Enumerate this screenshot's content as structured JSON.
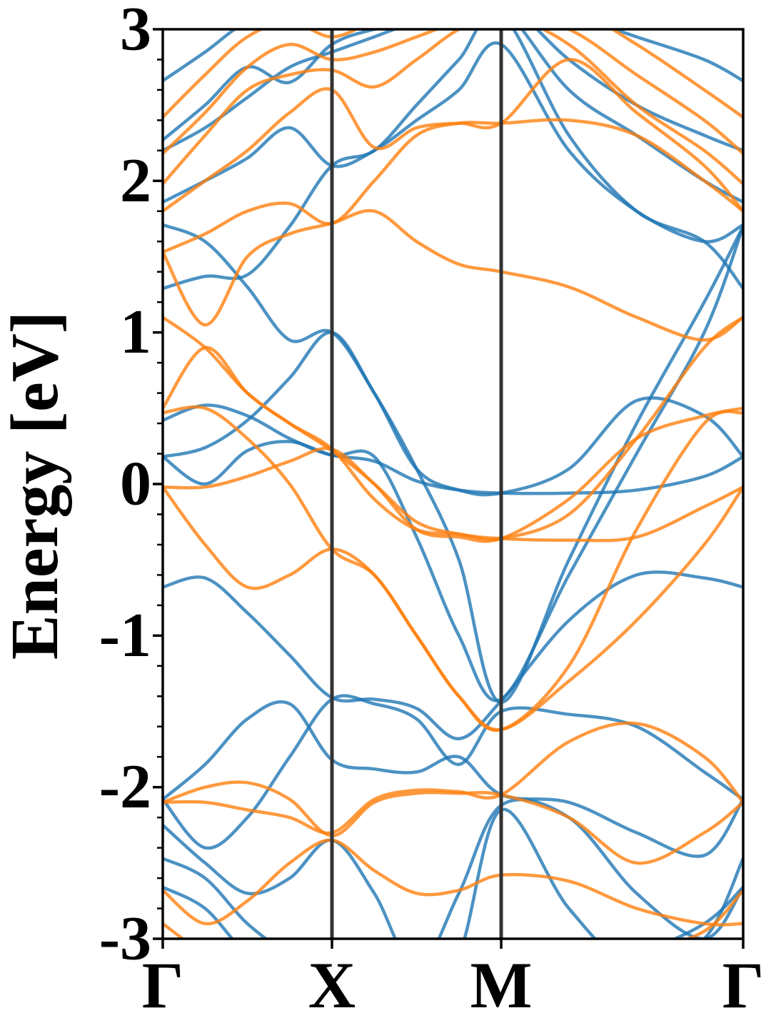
{
  "chart_data": {
    "type": "line",
    "title": "",
    "xlabel": "",
    "ylabel": "Energy [eV]",
    "ylim": [
      -3,
      3
    ],
    "yticks": [
      -3,
      -2,
      -1,
      0,
      1,
      2,
      3
    ],
    "y_minor_step": 0.2,
    "xlim": [
      0,
      3.43
    ],
    "k_points": [
      {
        "label": "Γ",
        "x": 0
      },
      {
        "label": "X",
        "x": 1.0
      },
      {
        "label": "M",
        "x": 2.0
      },
      {
        "label": "Γ",
        "x": 3.43
      }
    ],
    "grid": false,
    "legend": "none",
    "colors": {
      "spin_up": "#1f77b4",
      "spin_down": "#ff7f0e",
      "kpath_line": "#333333",
      "axes": "#000000"
    },
    "series": [
      {
        "color": "#1f77b4",
        "x": [
          0,
          0.25,
          0.5,
          0.75,
          1.0,
          1.25,
          1.5,
          1.75,
          2.0,
          2.4,
          2.8,
          3.2,
          3.43
        ],
        "y": [
          -0.68,
          -0.62,
          -0.85,
          -1.13,
          -1.41,
          -1.42,
          -1.48,
          -1.68,
          -1.43,
          -0.9,
          -0.6,
          -0.62,
          -0.68
        ]
      },
      {
        "color": "#1f77b4",
        "x": [
          0,
          0.25,
          0.5,
          0.75,
          1.0,
          1.25,
          1.5,
          1.75,
          2.0,
          2.4,
          2.8,
          3.2,
          3.43
        ],
        "y": [
          0.18,
          0.0,
          0.22,
          0.28,
          0.19,
          0.15,
          0.02,
          -0.04,
          -0.06,
          -0.06,
          -0.04,
          0.05,
          0.18
        ]
      },
      {
        "color": "#1f77b4",
        "x": [
          0,
          0.25,
          0.5,
          0.75,
          1.0,
          1.25,
          1.5,
          1.75,
          2.0,
          2.4,
          2.8,
          3.2,
          3.43
        ],
        "y": [
          0.18,
          0.24,
          0.42,
          0.7,
          1.0,
          0.6,
          0.1,
          -0.04,
          -0.06,
          0.1,
          0.55,
          0.45,
          0.18
        ]
      },
      {
        "color": "#1f77b4",
        "x": [
          0,
          0.25,
          0.5,
          0.75,
          1.0,
          1.25,
          1.5,
          1.75,
          2.0,
          2.4,
          2.8,
          3.2,
          3.43
        ],
        "y": [
          0.42,
          0.52,
          0.45,
          0.3,
          0.19,
          0.18,
          -0.35,
          -1.0,
          -1.42,
          -0.6,
          0.2,
          1.0,
          1.7
        ]
      },
      {
        "color": "#1f77b4",
        "x": [
          0,
          0.25,
          0.5,
          0.75,
          1.0,
          1.25,
          1.5,
          1.75,
          2.0,
          2.4,
          2.8,
          3.2,
          3.43
        ],
        "y": [
          1.71,
          1.6,
          1.3,
          0.95,
          1.0,
          0.6,
          0.1,
          -0.5,
          -1.44,
          -0.5,
          0.4,
          1.2,
          1.7
        ]
      },
      {
        "color": "#1f77b4",
        "x": [
          0,
          0.25,
          0.5,
          0.75,
          1.0,
          1.25,
          1.5,
          1.75,
          2.0,
          2.4,
          2.8,
          3.2,
          3.43
        ],
        "y": [
          1.29,
          1.37,
          1.38,
          1.7,
          2.1,
          2.2,
          2.5,
          2.8,
          3.1,
          2.3,
          1.8,
          1.6,
          1.29
        ]
      },
      {
        "color": "#1f77b4",
        "x": [
          0,
          0.25,
          0.5,
          0.75,
          1.0,
          1.25,
          1.5,
          1.75,
          2.0,
          2.4,
          2.8,
          3.2,
          3.43
        ],
        "y": [
          1.86,
          2.0,
          2.15,
          2.35,
          2.1,
          2.2,
          2.4,
          2.6,
          2.9,
          2.2,
          1.8,
          1.6,
          1.71
        ]
      },
      {
        "color": "#1f77b4",
        "x": [
          0,
          0.25,
          0.5,
          0.75,
          1.0,
          1.25,
          1.5,
          1.75,
          2.0,
          2.4,
          2.8,
          3.2,
          3.43
        ],
        "y": [
          2.2,
          2.35,
          2.55,
          2.75,
          2.85,
          2.95,
          3.05,
          3.1,
          3.15,
          2.6,
          2.3,
          2.0,
          1.86
        ]
      },
      {
        "color": "#1f77b4",
        "x": [
          0,
          0.25,
          0.5,
          0.75,
          1.0,
          1.25,
          1.5,
          1.75,
          2.0,
          2.4,
          2.8,
          3.2,
          3.43
        ],
        "y": [
          2.27,
          2.5,
          2.75,
          2.65,
          2.9,
          3.0,
          3.05,
          3.1,
          3.2,
          2.8,
          2.5,
          2.3,
          2.2
        ]
      },
      {
        "color": "#1f77b4",
        "x": [
          0,
          0.25,
          0.5,
          0.75,
          1.0,
          1.25,
          1.5,
          1.75,
          2.0,
          2.4,
          2.8,
          3.2,
          3.43
        ],
        "y": [
          2.66,
          2.85,
          3.05,
          3.1,
          3.1,
          3.15,
          3.2,
          3.2,
          3.2,
          3.1,
          2.95,
          2.8,
          2.66
        ]
      },
      {
        "color": "#1f77b4",
        "x": [
          0,
          0.25,
          0.5,
          0.75,
          1.0,
          1.25,
          1.5,
          1.75,
          2.0,
          2.4,
          2.8,
          3.2,
          3.43
        ],
        "y": [
          -2.08,
          -1.85,
          -1.55,
          -1.45,
          -1.82,
          -1.88,
          -1.9,
          -1.8,
          -2.05,
          -2.1,
          -2.3,
          -2.45,
          -2.08
        ]
      },
      {
        "color": "#1f77b4",
        "x": [
          0,
          0.25,
          0.5,
          0.75,
          1.0,
          1.25,
          1.5,
          1.75,
          2.0,
          2.4,
          2.8,
          3.2,
          3.43
        ],
        "y": [
          -2.08,
          -2.4,
          -2.2,
          -1.8,
          -1.42,
          -1.45,
          -1.55,
          -1.85,
          -1.5,
          -1.52,
          -1.6,
          -1.9,
          -2.08
        ]
      },
      {
        "color": "#1f77b4",
        "x": [
          0,
          0.25,
          0.5,
          0.75,
          1.0,
          1.25,
          1.5,
          1.75,
          2.0,
          2.4,
          2.8,
          3.2,
          3.43
        ],
        "y": [
          -2.25,
          -2.5,
          -2.7,
          -2.6,
          -2.35,
          -2.7,
          -3.2,
          -2.7,
          -2.12,
          -2.2,
          -2.7,
          -3.0,
          -2.66
        ]
      },
      {
        "color": "#1f77b4",
        "x": [
          0,
          0.25,
          0.5,
          0.75,
          1.0,
          1.25,
          1.5,
          1.75,
          2.0,
          2.4,
          2.8,
          3.2,
          3.43
        ],
        "y": [
          -2.47,
          -2.6,
          -2.9,
          -3.1,
          -3.2,
          -3.2,
          -3.2,
          -3.1,
          -2.15,
          -2.8,
          -3.2,
          -3.0,
          -2.47
        ]
      },
      {
        "color": "#1f77b4",
        "x": [
          0,
          0.25,
          0.5,
          0.75,
          1.0,
          1.25,
          1.5,
          1.75,
          2.0,
          2.4,
          2.8,
          3.2,
          3.43
        ],
        "y": [
          -2.66,
          -2.8,
          -3.1,
          -3.2,
          -3.2,
          -3.2,
          -3.2,
          -3.2,
          -3.2,
          -3.2,
          -3.1,
          -2.9,
          -2.66
        ]
      },
      {
        "color": "#ff7f0e",
        "x": [
          0,
          0.25,
          0.5,
          0.75,
          1.0,
          1.25,
          1.5,
          1.75,
          2.0,
          2.4,
          2.8,
          3.2,
          3.43
        ],
        "y": [
          -0.02,
          -0.02,
          0.05,
          0.15,
          0.23,
          0.0,
          -0.25,
          -0.33,
          -0.36,
          -0.37,
          -0.35,
          -0.15,
          -0.02
        ]
      },
      {
        "color": "#ff7f0e",
        "x": [
          0,
          0.25,
          0.5,
          0.75,
          1.0,
          1.25,
          1.5,
          1.75,
          2.0,
          2.4,
          2.8,
          3.2,
          3.43
        ],
        "y": [
          -0.02,
          -0.4,
          -0.68,
          -0.6,
          -0.43,
          -0.6,
          -1.0,
          -1.4,
          -1.62,
          -1.3,
          -0.9,
          -0.4,
          -0.02
        ]
      },
      {
        "color": "#ff7f0e",
        "x": [
          0,
          0.25,
          0.5,
          0.75,
          1.0,
          1.25,
          1.5,
          1.75,
          2.0,
          2.4,
          2.8,
          3.2,
          3.43
        ],
        "y": [
          0.47,
          0.5,
          0.3,
          0.0,
          -0.43,
          -0.6,
          -1.0,
          -1.4,
          -1.62,
          -1.2,
          -0.3,
          0.4,
          0.47
        ]
      },
      {
        "color": "#ff7f0e",
        "x": [
          0,
          0.25,
          0.5,
          0.75,
          1.0,
          1.25,
          1.5,
          1.75,
          2.0,
          2.4,
          2.8,
          3.2,
          3.43
        ],
        "y": [
          0.5,
          0.9,
          0.6,
          0.4,
          0.23,
          -0.1,
          -0.3,
          -0.33,
          -0.36,
          -0.2,
          0.3,
          0.9,
          1.1
        ]
      },
      {
        "color": "#ff7f0e",
        "x": [
          0,
          0.25,
          0.5,
          0.75,
          1.0,
          1.25,
          1.5,
          1.75,
          2.0,
          2.4,
          2.8,
          3.2,
          3.43
        ],
        "y": [
          1.1,
          0.9,
          0.6,
          0.4,
          0.22,
          0.0,
          -0.3,
          -0.35,
          -0.36,
          -0.1,
          0.3,
          0.45,
          0.5
        ]
      },
      {
        "color": "#ff7f0e",
        "x": [
          0,
          0.25,
          0.5,
          0.75,
          1.0,
          1.25,
          1.5,
          1.75,
          2.0,
          2.4,
          2.8,
          3.2,
          3.43
        ],
        "y": [
          1.53,
          1.05,
          1.5,
          1.65,
          1.72,
          1.8,
          1.6,
          1.45,
          1.4,
          1.3,
          1.1,
          0.95,
          1.1
        ]
      },
      {
        "color": "#ff7f0e",
        "x": [
          0,
          0.25,
          0.5,
          0.75,
          1.0,
          1.25,
          1.5,
          1.75,
          2.0,
          2.4,
          2.8,
          3.2,
          3.43
        ],
        "y": [
          1.53,
          1.65,
          1.8,
          1.85,
          1.72,
          2.0,
          2.3,
          2.38,
          2.38,
          2.4,
          2.3,
          2.0,
          1.8
        ]
      },
      {
        "color": "#ff7f0e",
        "x": [
          0,
          0.25,
          0.5,
          0.75,
          1.0,
          1.25,
          1.5,
          1.75,
          2.0,
          2.4,
          2.8,
          3.2,
          3.43
        ],
        "y": [
          1.8,
          2.0,
          2.2,
          2.45,
          2.6,
          2.22,
          2.35,
          2.38,
          2.38,
          2.8,
          2.45,
          2.1,
          1.8
        ]
      },
      {
        "color": "#ff7f0e",
        "x": [
          0,
          0.25,
          0.5,
          0.75,
          1.0,
          1.25,
          1.5,
          1.75,
          2.0,
          2.4,
          2.8,
          3.2,
          3.43
        ],
        "y": [
          1.98,
          2.3,
          2.6,
          2.7,
          2.73,
          2.62,
          2.8,
          3.0,
          3.1,
          2.9,
          2.5,
          2.2,
          1.98
        ]
      },
      {
        "color": "#ff7f0e",
        "x": [
          0,
          0.25,
          0.5,
          0.75,
          1.0,
          1.25,
          1.5,
          1.75,
          2.0,
          2.4,
          2.8,
          3.2,
          3.43
        ],
        "y": [
          2.18,
          2.45,
          2.75,
          2.9,
          2.8,
          2.85,
          2.95,
          3.05,
          3.1,
          3.0,
          2.7,
          2.4,
          2.18
        ]
      },
      {
        "color": "#ff7f0e",
        "x": [
          0,
          0.25,
          0.5,
          0.75,
          1.0,
          1.25,
          1.5,
          1.75,
          2.0,
          2.4,
          2.8,
          3.2,
          3.43
        ],
        "y": [
          2.42,
          2.7,
          2.95,
          3.05,
          2.95,
          3.05,
          3.1,
          3.15,
          3.2,
          3.15,
          2.9,
          2.6,
          2.42
        ]
      },
      {
        "color": "#ff7f0e",
        "x": [
          0,
          0.25,
          0.5,
          0.75,
          1.0,
          1.25,
          1.5,
          1.75,
          2.0,
          2.4,
          2.8,
          3.2,
          3.43
        ],
        "y": [
          -2.1,
          -2.1,
          -2.15,
          -2.2,
          -2.3,
          -2.08,
          -2.02,
          -2.03,
          -2.05,
          -1.7,
          -1.58,
          -1.8,
          -2.1
        ]
      },
      {
        "color": "#ff7f0e",
        "x": [
          0,
          0.25,
          0.5,
          0.75,
          1.0,
          1.25,
          1.5,
          1.75,
          2.0,
          2.4,
          2.8,
          3.2,
          3.43
        ],
        "y": [
          -2.1,
          -2.0,
          -1.97,
          -2.08,
          -2.32,
          -2.1,
          -2.04,
          -2.04,
          -2.05,
          -2.2,
          -2.5,
          -2.3,
          -2.1
        ]
      },
      {
        "color": "#ff7f0e",
        "x": [
          0,
          0.25,
          0.5,
          0.75,
          1.0,
          1.25,
          1.5,
          1.75,
          2.0,
          2.4,
          2.8,
          3.2,
          3.43
        ],
        "y": [
          -2.68,
          -2.9,
          -2.75,
          -2.5,
          -2.35,
          -2.55,
          -2.7,
          -2.68,
          -2.58,
          -2.62,
          -2.8,
          -2.9,
          -2.9
        ]
      },
      {
        "color": "#ff7f0e",
        "x": [
          0,
          0.25,
          0.5,
          0.75,
          1.0,
          1.25,
          1.5,
          1.75,
          2.0,
          2.4,
          2.8,
          3.2,
          3.43
        ],
        "y": [
          -2.9,
          -3.1,
          -3.2,
          -3.2,
          -3.2,
          -3.2,
          -3.2,
          -3.2,
          -3.2,
          -3.2,
          -3.1,
          -2.95,
          -2.68
        ]
      }
    ]
  }
}
